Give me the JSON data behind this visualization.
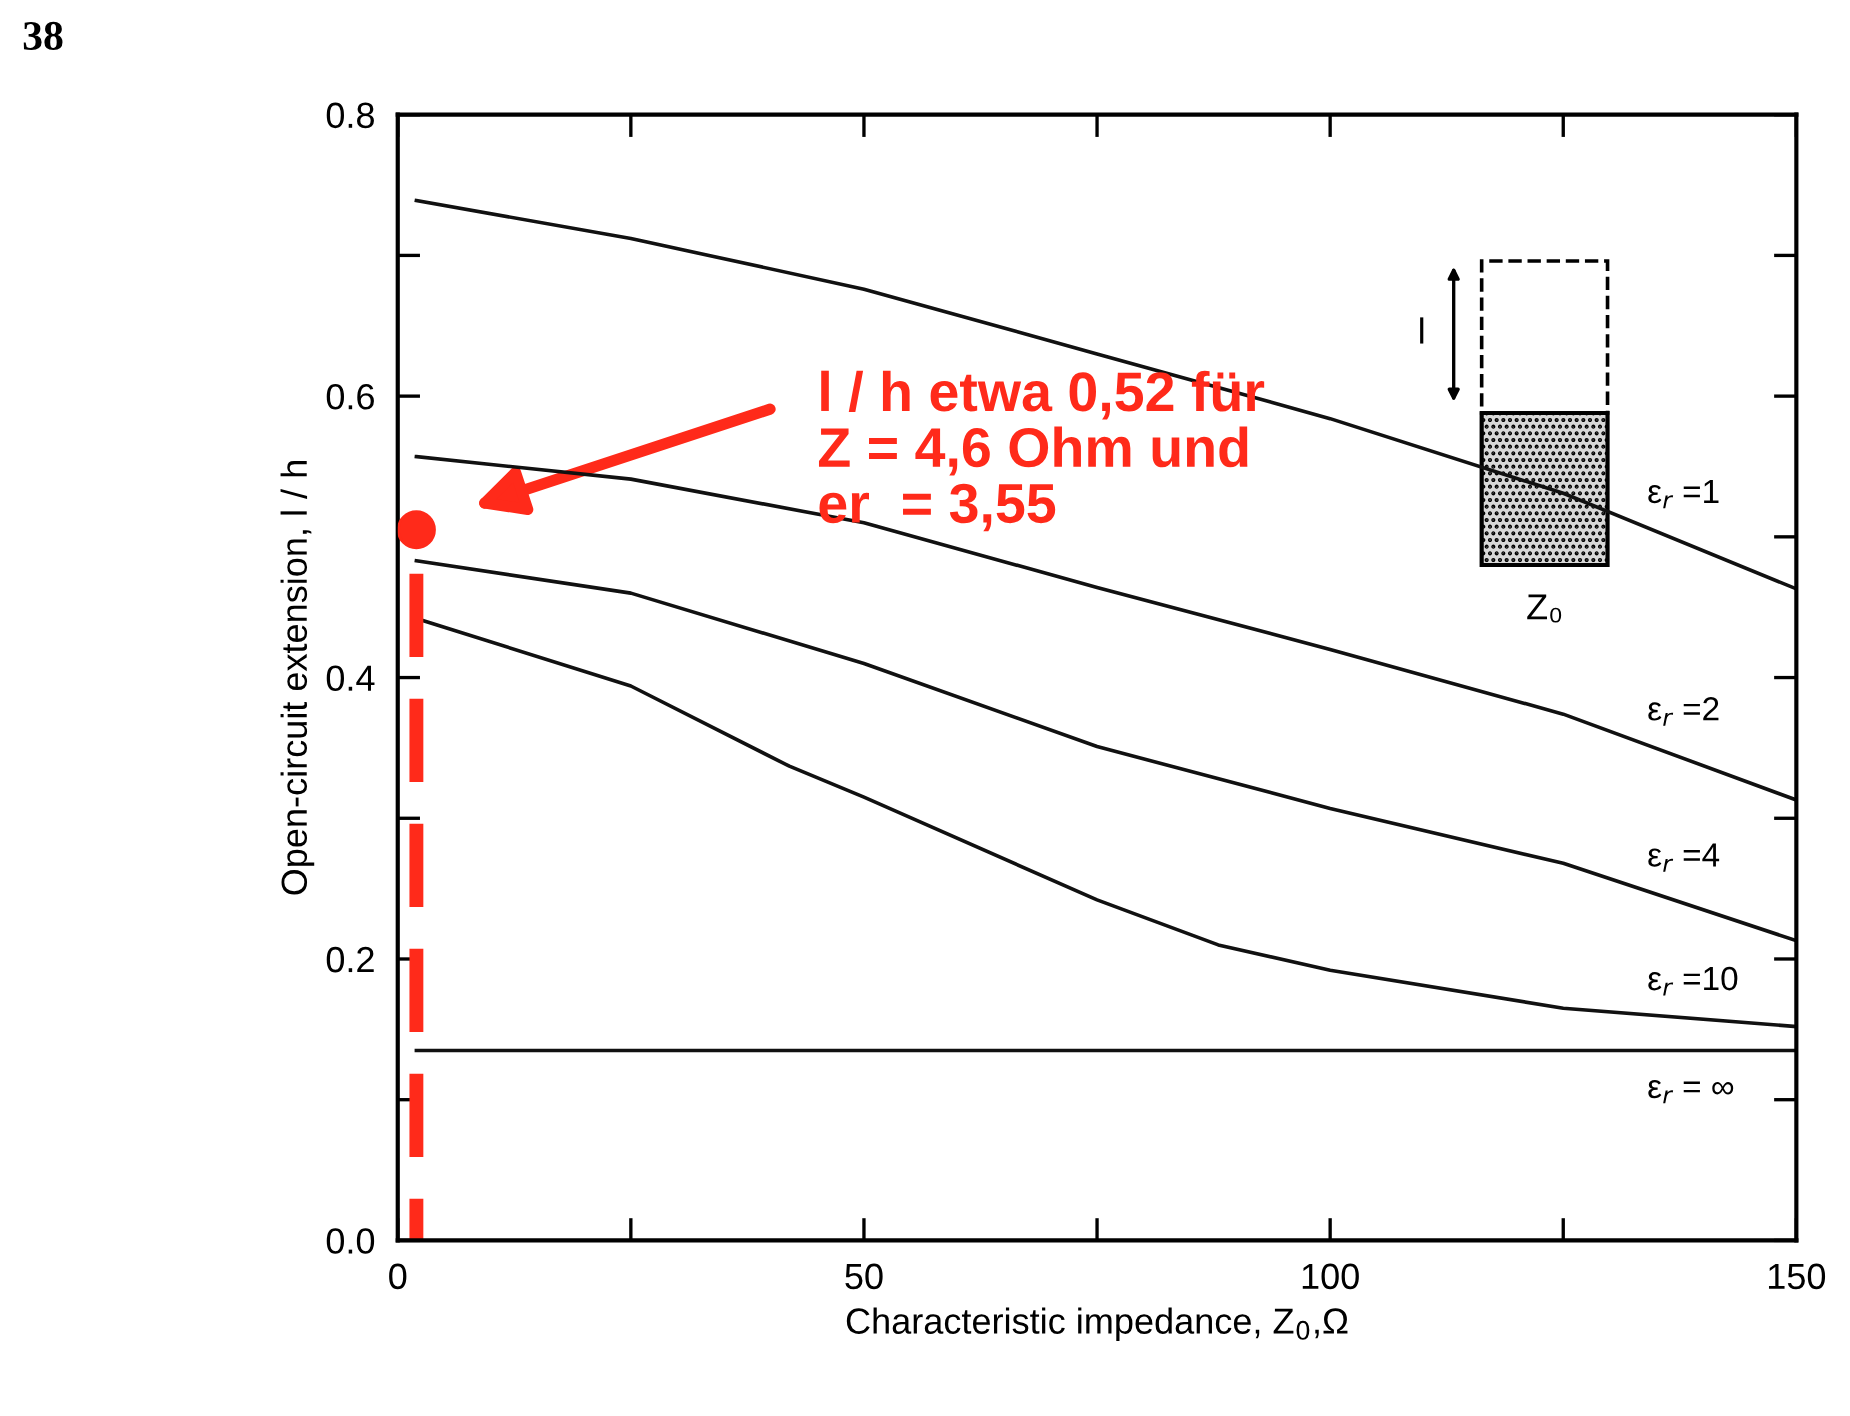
{
  "chart_data": {
    "type": "line",
    "xlabel": "Characteristic impedance, Z$_{0}$,Ω",
    "ylabel": "Open-circuit extension, l / h",
    "x": [
      2,
      25,
      50,
      75,
      100,
      125,
      150
    ],
    "series": [
      {
        "name": "ε$_{r}$ =1",
        "color": "#111111",
        "values": [
          0.739,
          0.712,
          0.676,
          0.63,
          0.584,
          0.531,
          0.463
        ]
      },
      {
        "name": "ε$_{r}$ =2",
        "color": "#111111",
        "values": [
          0.557,
          0.541,
          0.51,
          0.464,
          0.42,
          0.374,
          0.313
        ]
      },
      {
        "name": "ε$_{r}$ =4",
        "color": "#111111",
        "values": [
          0.483,
          0.46,
          0.41,
          0.351,
          0.307,
          0.268,
          0.213
        ]
      },
      {
        "name": "ε$_{r}$ =10",
        "color": "#111111",
        "x": [
          2,
          25,
          42,
          50,
          75,
          88,
          100,
          125,
          150
        ],
        "values": [
          0.442,
          0.394,
          0.337,
          0.315,
          0.242,
          0.21,
          0.192,
          0.165,
          0.152
        ]
      },
      {
        "name": "ε$_{r}$ = ∞",
        "color": "#111111",
        "values": [
          0.135,
          0.135,
          0.135,
          0.135,
          0.135,
          0.135,
          0.135
        ]
      },
      {
        "type": "line",
        "color": "#ff2a1a",
        "x": [
          2,
          2
        ],
        "values": [
          0,
          0.505
        ],
        "line_style": "dashed"
      },
      {
        "type": "scatter",
        "color": "#ff2a1a",
        "x": [
          2
        ],
        "values": [
          0.505
        ],
        "marker": "circle"
      }
    ],
    "xlim": [
      0,
      150
    ],
    "ylim": [
      0,
      0.8
    ],
    "xticks": [
      0,
      {
        "value": 25,
        "label": null
      },
      50,
      {
        "value": 75,
        "label": null
      },
      100,
      {
        "value": 125,
        "label": null
      },
      150
    ],
    "yticks": [
      {
        "value": 0,
        "label": "0.0"
      },
      {
        "value": 0.1,
        "label": null
      },
      0.2,
      {
        "value": 0.3,
        "label": null
      },
      0.4,
      {
        "value": 0.5,
        "label": null
      },
      0.6,
      {
        "value": 0.7,
        "label": null
      },
      0.8
    ],
    "grid": false,
    "legend": false,
    "marker": "none",
    "line_style": "solid",
    "annotations": [
      "38",
      "l",
      "Z₀",
      "l / h etwa 0,52 für\nZ = 4,6 Ohm und\ner  = 3,55"
    ]
  }
}
